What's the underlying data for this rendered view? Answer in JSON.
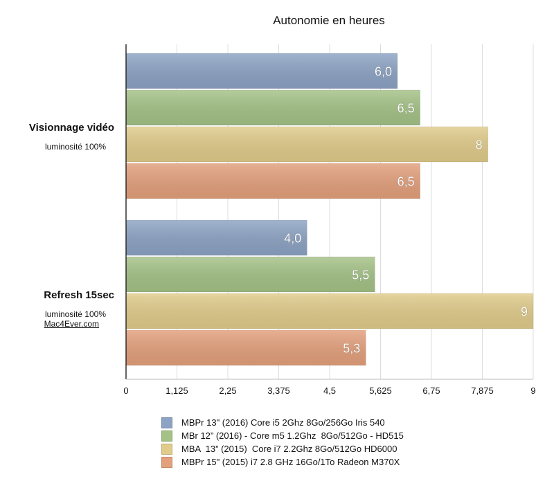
{
  "chart_data": {
    "type": "bar",
    "orientation": "horizontal",
    "title": "Autonomie en heures",
    "categories": [
      {
        "name": "Visionnage vidéo",
        "sub": "luminosité 100%",
        "note": ""
      },
      {
        "name": "Refresh 15sec",
        "sub": "luminosité 100%",
        "note": "Mac4Ever.com"
      }
    ],
    "series": [
      {
        "name": "MBPr 13\" (2016) Core i5 2Ghz 8Go/256Go Iris 540",
        "color": "#8ca3c4",
        "values": [
          6.0,
          4.0
        ],
        "labels": [
          "6,0",
          "4,0"
        ]
      },
      {
        "name": "MBr 12” (2016) - Core m5 1.2Ghz  8Go/512Go - HD515",
        "color": "#a4c286",
        "values": [
          6.5,
          5.5
        ],
        "labels": [
          "6,5",
          "5,5"
        ]
      },
      {
        "name": "MBA  13” (2015)  Core i7 2.2Ghz 8Go/512Go HD6000",
        "color": "#e0cb8a",
        "values": [
          8,
          9
        ],
        "labels": [
          "8",
          "9"
        ]
      },
      {
        "name": "MBPr 15\" (2015) i7 2.8 GHz 16Go/1To Radeon M370X",
        "color": "#e3a07c",
        "values": [
          6.5,
          5.3
        ],
        "labels": [
          "6,5",
          "5,3"
        ]
      }
    ],
    "xlim": [
      0,
      9
    ],
    "ticks": [
      "0",
      "1,125",
      "2,25",
      "3,375",
      "4,5",
      "5,625",
      "6,75",
      "7,875",
      "9"
    ],
    "grid": true,
    "legend": "bottom"
  }
}
